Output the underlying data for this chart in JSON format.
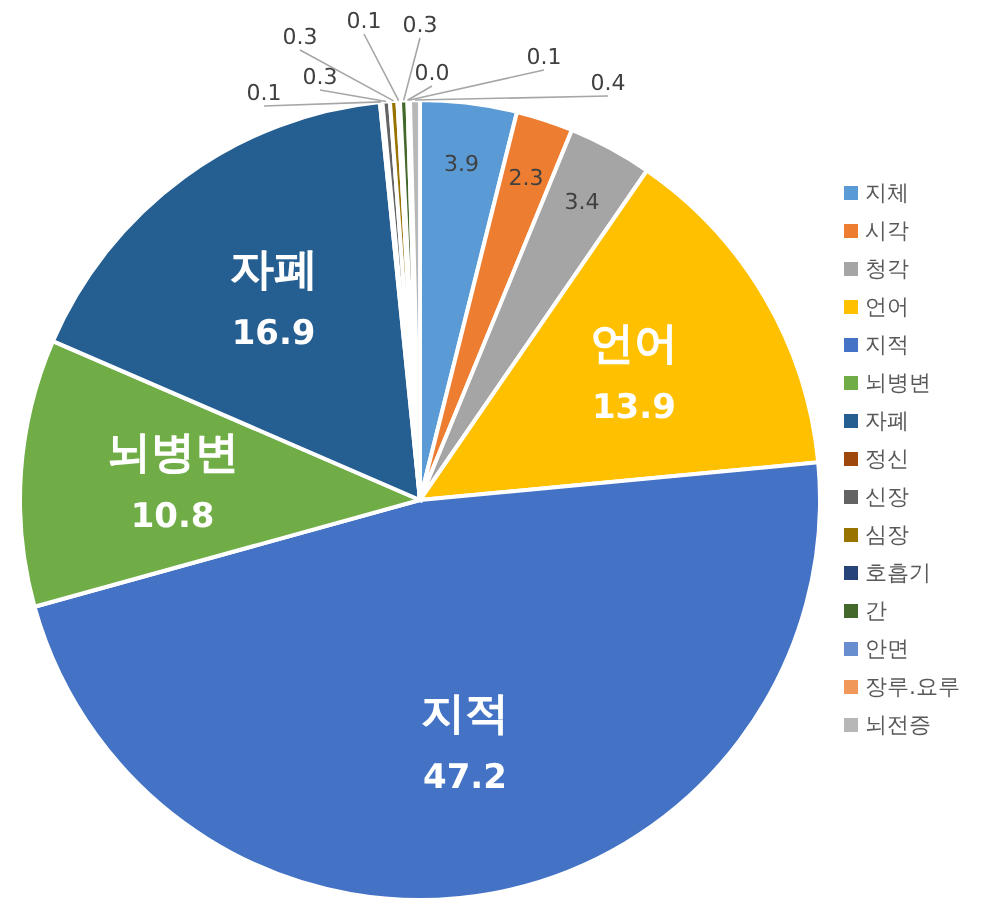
{
  "chart_data": {
    "type": "pie",
    "categories": [
      "지체",
      "시각",
      "청각",
      "언어",
      "지적",
      "뇌병변",
      "자폐",
      "정신",
      "신장",
      "심장",
      "호흡기",
      "간",
      "안면",
      "장루.요루",
      "뇌전증"
    ],
    "values": [
      3.9,
      2.3,
      3.4,
      13.9,
      47.2,
      10.8,
      16.9,
      0.1,
      0.3,
      0.3,
      0.1,
      0.3,
      0.0,
      0.1,
      0.4
    ],
    "colors": [
      "#5b9bd5",
      "#ed7d31",
      "#a5a5a5",
      "#ffc000",
      "#4472c4",
      "#70ad47",
      "#255e91",
      "#9e480e",
      "#636363",
      "#997300",
      "#264478",
      "#43682b",
      "#698ed0",
      "#f1975a",
      "#b7b7b7"
    ],
    "value_labels": [
      "3.9",
      "2.3",
      "3.4",
      "13.9",
      "47.2",
      "10.8",
      "16.9",
      "0.1",
      "0.3",
      "0.3",
      "0.1",
      "0.3",
      "0.0",
      "0.1",
      "0.4"
    ],
    "legend": "right"
  }
}
